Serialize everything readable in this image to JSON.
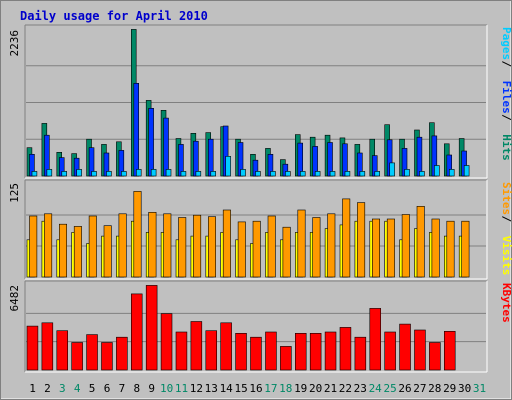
{
  "chart_data": [
    {
      "type": "bar",
      "title": "Daily usage for April 2010",
      "panel": "top",
      "y_max_label": "2236",
      "ylim": [
        0,
        2236
      ],
      "grid": true,
      "legend_items": [
        {
          "label": "Pages",
          "color": "#00ccff"
        },
        {
          "label": "Files",
          "color": "#0033ff"
        },
        {
          "label": "Hits",
          "color": "#008866"
        }
      ],
      "legend_sep": " / ",
      "categories": [
        "1",
        "2",
        "3",
        "4",
        "5",
        "6",
        "7",
        "8",
        "9",
        "10",
        "11",
        "12",
        "13",
        "14",
        "15",
        "16",
        "17",
        "18",
        "19",
        "20",
        "21",
        "22",
        "23",
        "24",
        "25",
        "26",
        "27",
        "28",
        "29",
        "30",
        "31"
      ],
      "series": [
        {
          "name": "Hits",
          "color": "#008866",
          "values": [
            430,
            800,
            360,
            340,
            560,
            480,
            520,
            2230,
            1150,
            1000,
            570,
            650,
            660,
            750,
            560,
            330,
            420,
            250,
            630,
            590,
            620,
            580,
            480,
            560,
            780,
            560,
            700,
            810,
            490,
            570,
            0
          ]
        },
        {
          "name": "Files",
          "color": "#0033ff",
          "values": [
            330,
            620,
            280,
            270,
            430,
            350,
            390,
            1410,
            1030,
            880,
            480,
            530,
            560,
            760,
            510,
            240,
            330,
            180,
            500,
            450,
            510,
            490,
            350,
            310,
            550,
            420,
            590,
            610,
            320,
            380,
            0
          ]
        },
        {
          "name": "Pages",
          "color": "#00ccff",
          "values": [
            70,
            100,
            70,
            100,
            70,
            70,
            70,
            100,
            100,
            100,
            70,
            70,
            70,
            300,
            100,
            70,
            70,
            70,
            70,
            70,
            70,
            70,
            70,
            70,
            200,
            100,
            70,
            160,
            100,
            160,
            0
          ]
        }
      ]
    },
    {
      "type": "bar",
      "panel": "middle",
      "y_max_label": "125",
      "ylim": [
        0,
        125
      ],
      "grid": true,
      "legend_items": [
        {
          "label": "Sites",
          "color": "#ff9900"
        },
        {
          "label": "Visits",
          "color": "#ffff00"
        }
      ],
      "legend_sep": " / ",
      "series": [
        {
          "name": "Visits",
          "color": "#ffff00",
          "values": [
            50,
            75,
            50,
            60,
            45,
            55,
            55,
            75,
            60,
            60,
            50,
            55,
            55,
            60,
            50,
            45,
            60,
            50,
            60,
            60,
            65,
            70,
            75,
            75,
            75,
            50,
            65,
            60,
            55,
            55,
            0
          ]
        },
        {
          "name": "Sites",
          "color": "#ff9900",
          "values": [
            82,
            85,
            71,
            68,
            82,
            69,
            85,
            115,
            87,
            85,
            80,
            83,
            81,
            90,
            74,
            75,
            82,
            67,
            90,
            80,
            85,
            105,
            100,
            78,
            78,
            84,
            95,
            78,
            75,
            75,
            0
          ]
        }
      ]
    },
    {
      "type": "bar",
      "panel": "bottom",
      "y_max_label": "6482",
      "ylim": [
        0,
        6482
      ],
      "grid": true,
      "legend_items": [
        {
          "label": "KBytes",
          "color": "#ff0000"
        }
      ],
      "series": [
        {
          "name": "KBytes",
          "color": "#ff0000",
          "values": [
            3350,
            3600,
            3000,
            2100,
            2700,
            2100,
            2500,
            5800,
            6450,
            4300,
            2900,
            3700,
            3000,
            3600,
            2800,
            2500,
            2900,
            1800,
            2800,
            2800,
            2900,
            3250,
            2500,
            4700,
            2900,
            3500,
            3050,
            2100,
            2950,
            0,
            0
          ]
        }
      ]
    }
  ],
  "weekend_days": [
    3,
    4,
    10,
    11,
    17,
    18,
    24,
    25,
    31
  ]
}
